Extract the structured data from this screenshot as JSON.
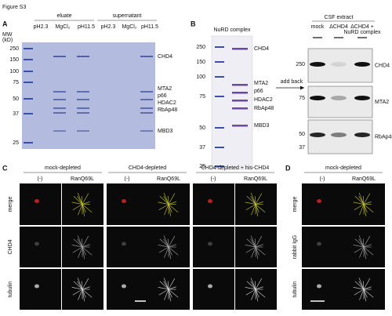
{
  "figure_title": "Figure S3",
  "panel_a": {
    "letter": "A",
    "mw_label": [
      "MW",
      "(kD)"
    ],
    "groups": [
      "eluate",
      "supernatant"
    ],
    "lanes": [
      "pH2.3",
      "MgCl₂",
      "pH11.5",
      "pH2.3",
      "MgCl₂",
      "pH11.5"
    ],
    "mw": [
      250,
      150,
      100,
      75,
      50,
      37,
      25
    ],
    "bands": [
      "CHD4",
      "MTA2",
      "p66",
      "HDAC2",
      "RbAp48",
      "MBD3"
    ]
  },
  "panel_b": {
    "letter": "B",
    "gel_title": "NuRD complex",
    "mw": [
      250,
      150,
      100,
      75,
      50,
      37,
      25
    ],
    "bands": [
      "CHD4",
      "MTA2",
      "p66",
      "HDAC2",
      "RbAp48",
      "MBD3"
    ],
    "arrow_label": "add back",
    "extract_title": "CSF extract",
    "lanes": [
      "mock",
      "ΔCHD4",
      [
        "ΔCHD4 +",
        "NuRD complex"
      ]
    ],
    "blots": [
      {
        "label": "CHD4",
        "mw": [
          250
        ]
      },
      {
        "label": "MTA2",
        "mw": [
          75
        ]
      },
      {
        "label": "RbAp48",
        "mw": [
          50,
          37
        ]
      }
    ]
  },
  "panel_c": {
    "letter": "C",
    "conditions": [
      "mock-depleted",
      "CHD4-depleted",
      "CHD4-depleted + his-CHD4"
    ],
    "columns": [
      "(-)",
      "RanQ69L"
    ],
    "rows": [
      "merge",
      "CHD4",
      "tubulin"
    ]
  },
  "panel_d": {
    "letter": "D",
    "conditions": [
      "mock-depleted"
    ],
    "columns": [
      "(-)",
      "RanQ69L"
    ],
    "rows": [
      "merge",
      "rabbit IgG",
      "tubulin"
    ]
  }
}
